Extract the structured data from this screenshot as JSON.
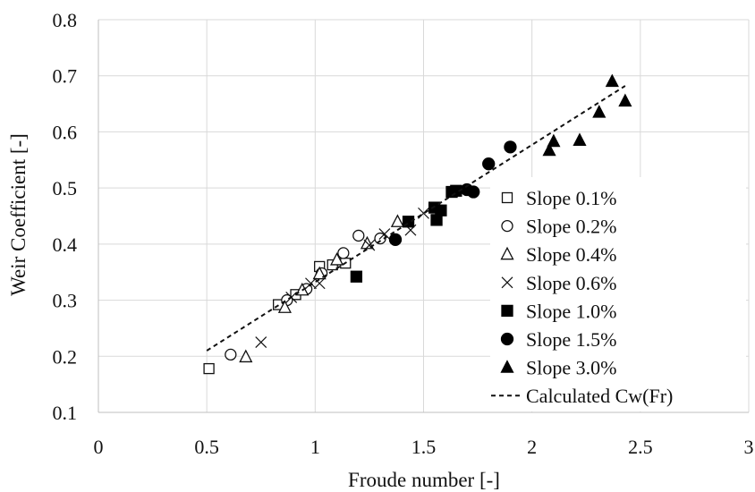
{
  "chart_data": {
    "type": "scatter",
    "title": "",
    "xlabel": "Froude number [-]",
    "ylabel": "Weir Coefficient [-]",
    "xlim": [
      0,
      3
    ],
    "ylim": [
      0.1,
      0.8
    ],
    "x_ticks": [
      "0",
      "0.5",
      "1",
      "1.5",
      "2",
      "2.5",
      "3"
    ],
    "y_ticks": [
      "0.1",
      "0.2",
      "0.3",
      "0.4",
      "0.5",
      "0.6",
      "0.7",
      "0.8"
    ],
    "grid": true,
    "legend_position": "right",
    "series": [
      {
        "name": "Slope 0.1%",
        "marker": "square-open",
        "color": "#111111",
        "points": [
          [
            0.51,
            0.178
          ],
          [
            0.83,
            0.292
          ],
          [
            0.91,
            0.31
          ],
          [
            1.02,
            0.36
          ],
          [
            1.08,
            0.363
          ],
          [
            1.14,
            0.366
          ]
        ]
      },
      {
        "name": "Slope 0.2%",
        "marker": "circle-open",
        "color": "#111111",
        "points": [
          [
            0.61,
            0.203
          ],
          [
            0.87,
            0.3
          ],
          [
            0.96,
            0.32
          ],
          [
            1.03,
            0.348
          ],
          [
            1.13,
            0.384
          ],
          [
            1.2,
            0.415
          ],
          [
            1.3,
            0.41
          ]
        ]
      },
      {
        "name": "Slope 0.4%",
        "marker": "triangle-open",
        "color": "#111111",
        "points": [
          [
            0.68,
            0.199
          ],
          [
            0.86,
            0.287
          ],
          [
            0.94,
            0.318
          ],
          [
            1.02,
            0.347
          ],
          [
            1.1,
            0.372
          ],
          [
            1.24,
            0.401
          ],
          [
            1.38,
            0.44
          ]
        ]
      },
      {
        "name": "Slope 0.6%",
        "marker": "x",
        "color": "#111111",
        "points": [
          [
            0.75,
            0.225
          ],
          [
            0.89,
            0.305
          ],
          [
            0.98,
            0.33
          ],
          [
            1.02,
            0.33
          ],
          [
            1.25,
            0.398
          ],
          [
            1.32,
            0.418
          ],
          [
            1.44,
            0.425
          ],
          [
            1.5,
            0.455
          ]
        ]
      },
      {
        "name": "Slope 1.0%",
        "marker": "square-filled",
        "color": "#000000",
        "points": [
          [
            1.19,
            0.342
          ],
          [
            1.43,
            0.44
          ],
          [
            1.55,
            0.465
          ],
          [
            1.56,
            0.443
          ],
          [
            1.58,
            0.46
          ],
          [
            1.63,
            0.493
          ],
          [
            1.65,
            0.495
          ]
        ]
      },
      {
        "name": "Slope 1.5%",
        "marker": "circle-filled",
        "color": "#000000",
        "points": [
          [
            1.37,
            0.408
          ],
          [
            1.7,
            0.497
          ],
          [
            1.73,
            0.493
          ],
          [
            1.8,
            0.543
          ],
          [
            1.9,
            0.573
          ]
        ]
      },
      {
        "name": "Slope 3.0%",
        "marker": "triangle-filled",
        "color": "#000000",
        "points": [
          [
            2.08,
            0.567
          ],
          [
            2.1,
            0.583
          ],
          [
            2.22,
            0.585
          ],
          [
            2.31,
            0.635
          ],
          [
            2.37,
            0.69
          ],
          [
            2.43,
            0.655
          ]
        ]
      },
      {
        "name": "Calculated Cw(Fr)",
        "marker": "dashed-line",
        "color": "#111111",
        "points": [
          [
            0.5,
            0.21
          ],
          [
            2.43,
            0.682
          ]
        ]
      }
    ]
  }
}
